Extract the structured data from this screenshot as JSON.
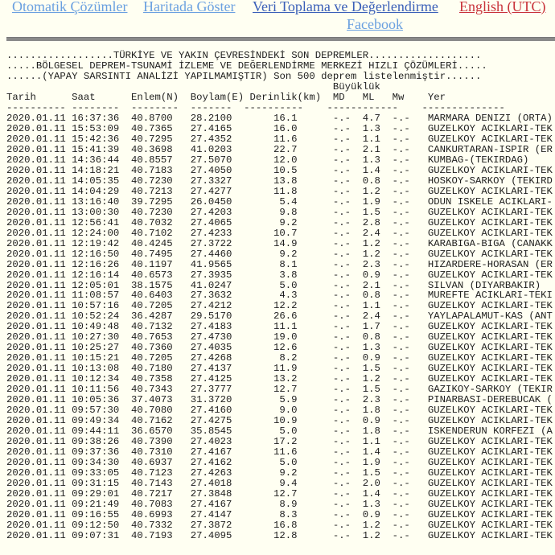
{
  "nav": {
    "auto_solutions": "Otomatik Çözümler",
    "show_on_map": "Haritada Göster",
    "data_collection": "Veri Toplama ve Değerlendirme",
    "english": "English (UTC)",
    "facebook": "Facebook"
  },
  "header": {
    "line1": "..................TÜRKİYE VE YAKIN ÇEVRESİNDEKİ SON DEPREMLER...................",
    "line2": ".....BÖLGESEL DEPREM-TSUNAMİ İZLEME VE DEĞERLENDİRME MERKEZİ HIZLI ÇÖZÜMLERİ.....",
    "line3": "......(YAPAY SARSINTI ANALİZİ YAPILMAMIŞTIR) Son 500 deprem listelenmiştir......",
    "magnitude_group": "Büyüklük"
  },
  "columns": {
    "date": "Tarih",
    "time": "Saat",
    "lat": "Enlem(N)",
    "lon": "Boylam(E)",
    "depth": "Derinlik(km)",
    "md": "MD",
    "ml": "ML",
    "mw": "Mw",
    "place": "Yer"
  },
  "rows": [
    [
      "2020.01.11",
      "16:37:36",
      "40.8700",
      "28.2100",
      "16.1",
      "-.-",
      "4.7",
      "-.-",
      "MARMARA DENIZI (ORTA)"
    ],
    [
      "2020.01.11",
      "15:53:09",
      "40.7365",
      "27.4165",
      "16.0",
      "-.-",
      "1.3",
      "-.-",
      "GUZELKOY ACIKLARI-TEK"
    ],
    [
      "2020.01.11",
      "15:42:36",
      "40.7295",
      "27.4352",
      "11.6",
      "-.-",
      "1.1",
      "-.-",
      "GUZELKOY ACIKLARI-TEK"
    ],
    [
      "2020.01.11",
      "15:41:39",
      "40.3698",
      "41.0203",
      "22.7",
      "-.-",
      "2.1",
      "-.-",
      "CANKURTARAN-ISPIR (ER"
    ],
    [
      "2020.01.11",
      "14:36:44",
      "40.8557",
      "27.5070",
      "12.0",
      "-.-",
      "1.3",
      "-.-",
      "KUMBAG-(TEKIRDAG)"
    ],
    [
      "2020.01.11",
      "14:18:21",
      "40.7183",
      "27.4050",
      "10.5",
      "-.-",
      "1.4",
      "-.-",
      "GUZELKOY ACIKLARI-TEK"
    ],
    [
      "2020.01.11",
      "14:05:35",
      "40.7230",
      "27.3327",
      "13.8",
      "-.-",
      "0.8",
      "-.-",
      "HOSKOY-SARKOY (TEKIRD"
    ],
    [
      "2020.01.11",
      "14:04:29",
      "40.7213",
      "27.4277",
      "11.8",
      "-.-",
      "1.2",
      "-.-",
      "GUZELKOY ACIKLARI-TEK"
    ],
    [
      "2020.01.11",
      "13:16:40",
      "39.7295",
      "26.0450",
      "5.4",
      "-.-",
      "1.9",
      "-.-",
      "ODUN ISKELE ACIKLARI-"
    ],
    [
      "2020.01.11",
      "13:00:30",
      "40.7230",
      "27.4203",
      "9.8",
      "-.-",
      "1.5",
      "-.-",
      "GUZELKOY ACIKLARI-TEK"
    ],
    [
      "2020.01.11",
      "12:56:41",
      "40.7032",
      "27.4065",
      "9.2",
      "-.-",
      "2.8",
      "-.-",
      "GUZELKOY ACIKLARI-TEK"
    ],
    [
      "2020.01.11",
      "12:24:00",
      "40.7102",
      "27.4233",
      "10.7",
      "-.-",
      "2.4",
      "-.-",
      "GUZELKOY ACIKLARI-TEK"
    ],
    [
      "2020.01.11",
      "12:19:42",
      "40.4245",
      "27.3722",
      "14.9",
      "-.-",
      "1.2",
      "-.-",
      "KARABIGA-BIGA (CANAKK"
    ],
    [
      "2020.01.11",
      "12:16:50",
      "40.7495",
      "27.4460",
      "9.2",
      "-.-",
      "1.2",
      "-.-",
      "GUZELKOY ACIKLARI-TEK"
    ],
    [
      "2020.01.11",
      "12:16:26",
      "40.1197",
      "41.9565",
      "8.1",
      "-.-",
      "2.3",
      "-.-",
      "HIZARDERE-HORASAN (ER"
    ],
    [
      "2020.01.11",
      "12:16:14",
      "40.6573",
      "27.3935",
      "3.8",
      "-.-",
      "0.9",
      "-.-",
      "GUZELKOY ACIKLARI-TEK"
    ],
    [
      "2020.01.11",
      "12:05:01",
      "38.1575",
      "41.0247",
      "5.0",
      "-.-",
      "2.1",
      "-.-",
      "SILVAN (DIYARBAKIR)"
    ],
    [
      "2020.01.11",
      "11:08:57",
      "40.6403",
      "27.3632",
      "4.3",
      "-.-",
      "0.8",
      "-.-",
      "MUREFTE ACIKLARI-TEKI"
    ],
    [
      "2020.01.11",
      "10:57:16",
      "40.7205",
      "27.4212",
      "12.2",
      "-.-",
      "1.1",
      "-.-",
      "GUZELKOY ACIKLARI-TEK"
    ],
    [
      "2020.01.11",
      "10:52:24",
      "36.4287",
      "29.5170",
      "26.6",
      "-.-",
      "2.4",
      "-.-",
      "YAYLAPALAMUT-KAS (ANT"
    ],
    [
      "2020.01.11",
      "10:49:48",
      "40.7132",
      "27.4183",
      "11.1",
      "-.-",
      "1.7",
      "-.-",
      "GUZELKOY ACIKLARI-TEK"
    ],
    [
      "2020.01.11",
      "10:27:30",
      "40.7653",
      "27.4730",
      "19.0",
      "-.-",
      "0.8",
      "-.-",
      "GUZELKOY ACIKLARI-TEK"
    ],
    [
      "2020.01.11",
      "10:25:27",
      "40.7360",
      "27.4035",
      "12.6",
      "-.-",
      "1.3",
      "-.-",
      "GUZELKOY ACIKLARI-TEK"
    ],
    [
      "2020.01.11",
      "10:15:21",
      "40.7205",
      "27.4268",
      "8.2",
      "-.-",
      "0.9",
      "-.-",
      "GUZELKOY ACIKLARI-TEK"
    ],
    [
      "2020.01.11",
      "10:13:08",
      "40.7180",
      "27.4137",
      "11.9",
      "-.-",
      "1.5",
      "-.-",
      "GUZELKOY ACIKLARI-TEK"
    ],
    [
      "2020.01.11",
      "10:12:34",
      "40.7358",
      "27.4125",
      "13.2",
      "-.-",
      "1.2",
      "-.-",
      "GUZELKOY ACIKLARI-TEK"
    ],
    [
      "2020.01.11",
      "10:11:56",
      "40.7343",
      "27.3777",
      "12.7",
      "-.-",
      "1.5",
      "-.-",
      "GAZIKOY-SARKOY (TEKIR"
    ],
    [
      "2020.01.11",
      "10:05:36",
      "37.4073",
      "31.3720",
      "5.9",
      "-.-",
      "2.3",
      "-.-",
      "PINARBASI-DEREBUCAK ("
    ],
    [
      "2020.01.11",
      "09:57:30",
      "40.7080",
      "27.4160",
      "9.0",
      "-.-",
      "1.8",
      "-.-",
      "GUZELKOY ACIKLARI-TEK"
    ],
    [
      "2020.01.11",
      "09:49:34",
      "40.7162",
      "27.4275",
      "10.9",
      "-.-",
      "0.9",
      "-.-",
      "GUZELKOY ACIKLARI-TEK"
    ],
    [
      "2020.01.11",
      "09:44:11",
      "36.6570",
      "35.8545",
      "5.0",
      "-.-",
      "1.8",
      "-.-",
      "ISKENDERUN KORFEZI (A"
    ],
    [
      "2020.01.11",
      "09:38:26",
      "40.7390",
      "27.4023",
      "17.2",
      "-.-",
      "1.1",
      "-.-",
      "GUZELKOY ACIKLARI-TEK"
    ],
    [
      "2020.01.11",
      "09:37:36",
      "40.7310",
      "27.4167",
      "11.6",
      "-.-",
      "1.4",
      "-.-",
      "GUZELKOY ACIKLARI-TEK"
    ],
    [
      "2020.01.11",
      "09:34:30",
      "40.6937",
      "27.4162",
      "5.0",
      "-.-",
      "1.9",
      "-.-",
      "GUZELKOY ACIKLARI-TEK"
    ],
    [
      "2020.01.11",
      "09:33:05",
      "40.7123",
      "27.4263",
      "9.2",
      "-.-",
      "1.5",
      "-.-",
      "GUZELKOY ACIKLARI-TEK"
    ],
    [
      "2020.01.11",
      "09:31:15",
      "40.7143",
      "27.4018",
      "9.4",
      "-.-",
      "2.0",
      "-.-",
      "GUZELKOY ACIKLARI-TEK"
    ],
    [
      "2020.01.11",
      "09:29:01",
      "40.7217",
      "27.3848",
      "12.7",
      "-.-",
      "1.4",
      "-.-",
      "GUZELKOY ACIKLARI-TEK"
    ],
    [
      "2020.01.11",
      "09:21:49",
      "40.7083",
      "27.4167",
      "8.9",
      "-.-",
      "1.3",
      "-.-",
      "GUZELKOY ACIKLARI-TEK"
    ],
    [
      "2020.01.11",
      "09:16:55",
      "40.6993",
      "27.4147",
      "8.3",
      "-.-",
      "0.9",
      "-.-",
      "GUZELKOY ACIKLARI-TEK"
    ],
    [
      "2020.01.11",
      "09:12:50",
      "40.7332",
      "27.3872",
      "16.8",
      "-.-",
      "1.2",
      "-.-",
      "GUZELKOY ACIKLARI-TEK"
    ],
    [
      "2020.01.11",
      "09:07:31",
      "40.7193",
      "27.4095",
      "12.8",
      "-.-",
      "1.2",
      "-.-",
      "GUZELKOY ACIKLARI-TEK"
    ]
  ]
}
